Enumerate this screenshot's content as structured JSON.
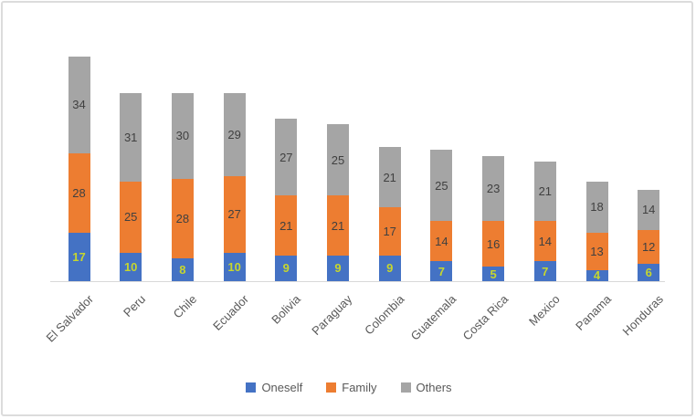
{
  "chart_data": {
    "type": "bar",
    "stacked": true,
    "title": "",
    "xlabel": "",
    "ylabel": "",
    "categories": [
      "El Salvador",
      "Peru",
      "Chile",
      "Ecuador",
      "Bolivia",
      "Paraguay",
      "Colombia",
      "Guatemala",
      "Costa Rica",
      "Mexico",
      "Panama",
      "Honduras"
    ],
    "series": [
      {
        "name": "Oneself",
        "color": "#4472C4",
        "label_color": "#c6d62e",
        "label_style": "bold",
        "values": [
          17,
          10,
          8,
          10,
          9,
          9,
          9,
          7,
          5,
          7,
          4,
          6
        ]
      },
      {
        "name": "Family",
        "color": "#ED7D31",
        "label_color": "#404040",
        "label_style": "normal",
        "values": [
          28,
          25,
          28,
          27,
          21,
          21,
          17,
          14,
          16,
          14,
          13,
          12
        ]
      },
      {
        "name": "Others",
        "color": "#A5A5A5",
        "label_color": "#404040",
        "label_style": "normal",
        "values": [
          34,
          31,
          30,
          29,
          27,
          25,
          21,
          25,
          23,
          21,
          18,
          14
        ]
      }
    ],
    "totals": [
      79,
      66,
      66,
      66,
      57,
      55,
      47,
      46,
      44,
      42,
      35,
      32
    ],
    "legend_position": "bottom",
    "legend_entries": [
      "Oneself",
      "Family",
      "Others"
    ],
    "axis_line_color": "#d9d9d9",
    "gridlines": false,
    "y_axis_visible": false,
    "ylim": [
      0,
      85
    ]
  }
}
